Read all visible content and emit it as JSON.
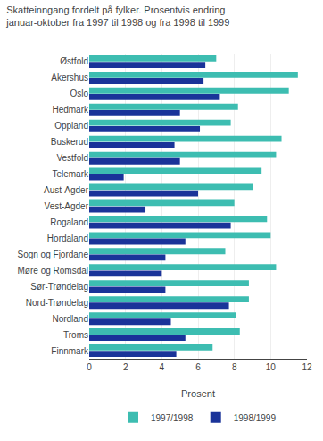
{
  "chart_data": {
    "type": "bar",
    "orientation": "horizontal",
    "title": "Skatteinngang fordelt på fylker. Prosentvis endring\njanuar-oktober fra 1997 til 1998 og fra 1998 til 1999",
    "categories": [
      "Østfold",
      "Akershus",
      "Oslo",
      "Hedmark",
      "Oppland",
      "Buskerud",
      "Vestfold",
      "Telemark",
      "Aust-Agder",
      "Vest-Agder",
      "Rogaland",
      "Hordaland",
      "Sogn og Fjordane",
      "Møre og Romsdal",
      "Sør-Trøndelag",
      "Nord-Trøndelag",
      "Nordland",
      "Troms",
      "Finnmark"
    ],
    "series": [
      {
        "name": "1997/1998",
        "color": "#3dbdb1",
        "values": [
          7.0,
          11.5,
          11.0,
          8.2,
          7.8,
          10.6,
          10.3,
          9.5,
          9.0,
          8.0,
          9.8,
          10.0,
          7.5,
          10.3,
          8.8,
          8.8,
          8.1,
          8.3,
          6.8
        ]
      },
      {
        "name": "1998/1999",
        "color": "#1a3399",
        "values": [
          6.4,
          6.3,
          7.2,
          5.0,
          6.1,
          4.7,
          5.0,
          1.9,
          6.0,
          3.1,
          7.8,
          5.3,
          4.2,
          4.0,
          4.2,
          7.7,
          4.5,
          5.3,
          4.8
        ]
      }
    ],
    "xlabel": "Prosent",
    "xlim": [
      0,
      12
    ],
    "xticks": [
      0,
      2,
      4,
      6,
      8,
      10,
      12
    ],
    "grid": true,
    "legend": "bottom"
  }
}
